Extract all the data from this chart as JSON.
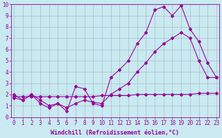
{
  "xlabel": "Windchill (Refroidissement éolien,°C)",
  "bg_color": "#c8eaf0",
  "grid_color": "#b0b8cc",
  "line_color": "#990099",
  "x_min": 0,
  "x_max": 23,
  "y_min": 0,
  "y_max": 10,
  "line1_x": [
    0,
    1,
    2,
    3,
    4,
    5,
    6,
    7,
    8,
    9,
    10,
    11,
    12,
    13,
    14,
    15,
    16,
    17,
    18,
    19,
    20,
    21,
    22,
    23
  ],
  "line1_y": [
    1.7,
    1.5,
    2.0,
    1.2,
    0.8,
    1.2,
    0.5,
    2.7,
    2.5,
    1.2,
    1.0,
    3.5,
    4.2,
    5.0,
    6.5,
    7.5,
    9.5,
    9.8,
    9.0,
    9.9,
    7.8,
    6.7,
    4.8,
    3.5
  ],
  "line2_x": [
    0,
    1,
    2,
    3,
    4,
    5,
    6,
    7,
    8,
    9,
    10,
    11,
    12,
    13,
    14,
    15,
    16,
    17,
    18,
    19,
    20,
    21,
    22,
    23
  ],
  "line2_y": [
    2.0,
    1.5,
    2.0,
    1.5,
    1.0,
    1.2,
    0.8,
    1.2,
    1.5,
    1.3,
    1.2,
    2.0,
    2.5,
    3.0,
    4.0,
    4.8,
    5.8,
    6.5,
    7.0,
    7.5,
    7.0,
    5.0,
    3.5,
    3.5
  ],
  "line3_x": [
    0,
    1,
    2,
    3,
    4,
    5,
    6,
    7,
    8,
    9,
    10,
    11,
    12,
    13,
    14,
    15,
    16,
    17,
    18,
    19,
    20,
    21,
    22,
    23
  ],
  "line3_y": [
    1.8,
    1.8,
    1.8,
    1.8,
    1.8,
    1.8,
    1.8,
    1.8,
    1.8,
    1.8,
    1.9,
    1.9,
    1.9,
    1.9,
    2.0,
    2.0,
    2.0,
    2.0,
    2.0,
    2.0,
    2.0,
    2.1,
    2.1,
    2.1
  ],
  "marker": "D",
  "marker_size": 2,
  "line_width": 0.8,
  "xlabel_fontsize": 6,
  "tick_fontsize": 5.5
}
